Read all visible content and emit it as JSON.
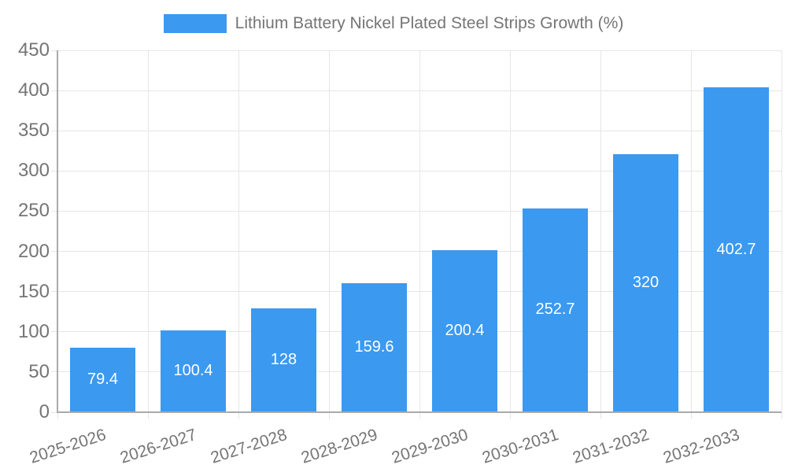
{
  "chart_data": {
    "type": "bar",
    "title": "Lithium Battery Nickel Plated Steel Strips Growth (%)",
    "series_name": "Lithium Battery Nickel Plated Steel Strips Growth (%)",
    "categories": [
      "2025-2026",
      "2026-2027",
      "2027-2028",
      "2028-2029",
      "2029-2030",
      "2030-2031",
      "2031-2032",
      "2032-2033"
    ],
    "values": [
      79.4,
      100.4,
      128,
      159.6,
      200.4,
      252.7,
      320,
      402.7
    ],
    "value_labels": [
      "79.4",
      "100.4",
      "128",
      "159.6",
      "200.4",
      "252.7",
      "320",
      "402.7"
    ],
    "xlabel": "",
    "ylabel": "",
    "ylim": [
      0,
      450
    ],
    "yticks": [
      0,
      50,
      100,
      150,
      200,
      250,
      300,
      350,
      400,
      450
    ],
    "grid": "on",
    "legend_position": "top-center",
    "value_label_position": "inside-center",
    "colors": {
      "bar": "#3b99f0",
      "value_label": "#ffffff",
      "axis_text": "#757575",
      "gridline": "#e6e6e6",
      "axis_line": "#aaaaaa",
      "background": "#ffffff"
    }
  }
}
